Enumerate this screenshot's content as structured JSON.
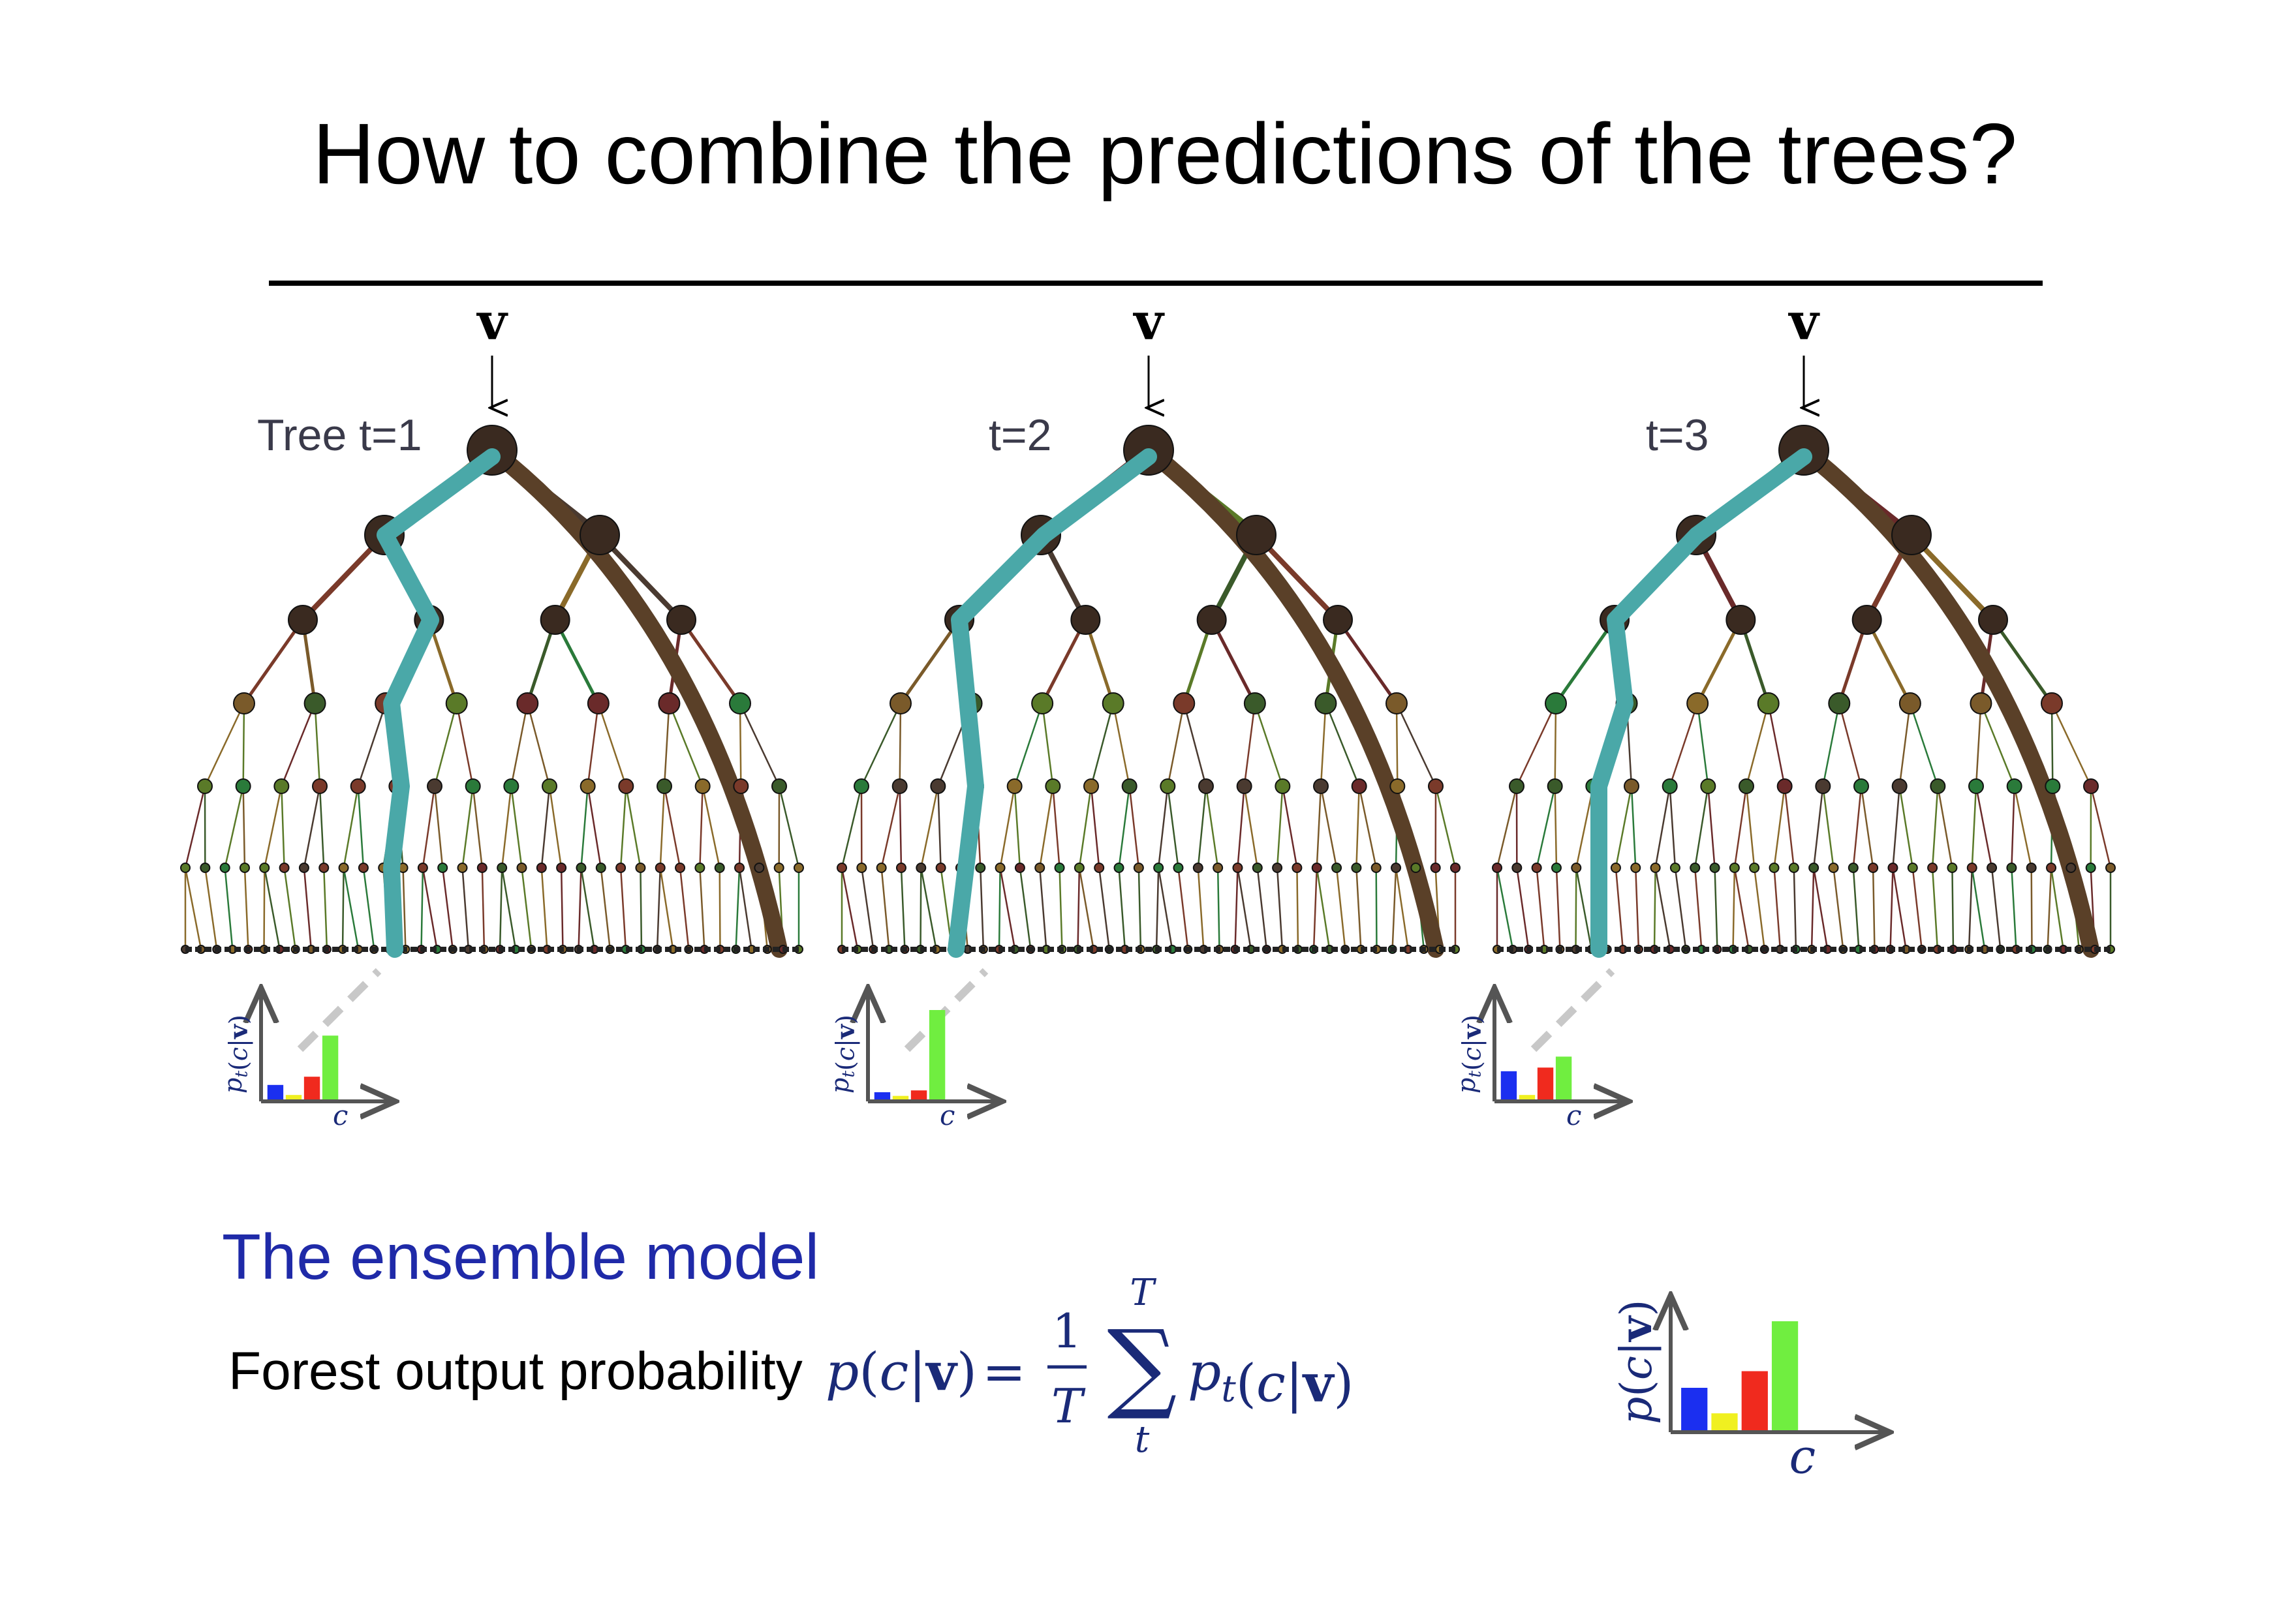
{
  "title": "How to combine the predictions of the trees?",
  "input_symbol": "v",
  "trees": [
    {
      "label": "Tree t=1",
      "hist_ylabel": "p_t(c|v)",
      "hist_xlabel": "c",
      "posterior": [
        0.18,
        0.07,
        0.27,
        0.72
      ]
    },
    {
      "label": "t=2",
      "hist_ylabel": "p_t(c|v)",
      "hist_xlabel": "c",
      "posterior": [
        0.1,
        0.06,
        0.12,
        1.0
      ]
    },
    {
      "label": "t=3",
      "hist_ylabel": "p_t(c|v)",
      "hist_xlabel": "c",
      "posterior": [
        0.33,
        0.07,
        0.37,
        0.49
      ]
    }
  ],
  "ensemble": {
    "heading": "The ensemble model",
    "label": "Forest output probability",
    "formula": {
      "lhs": "p(c|v)",
      "equals": "=",
      "numerator": "1",
      "denominator": "T",
      "sum_symbol": "∑",
      "sum_upper": "T",
      "sum_lower": "t",
      "term": "p_t(c|v)"
    },
    "hist_ylabel": "p(c|v)",
    "hist_xlabel": "c",
    "posterior": [
      0.4,
      0.17,
      0.55,
      1.0
    ]
  },
  "class_colors": [
    "#1b2ff0",
    "#f0f020",
    "#f02a1e",
    "#70ee40"
  ],
  "colors": {
    "path": "#4aa8a8",
    "trunk": "#5a4028",
    "node": "#3a2a20",
    "formula": "#1a2a78",
    "heading": "#1f2aa8",
    "axis": "#555555"
  }
}
